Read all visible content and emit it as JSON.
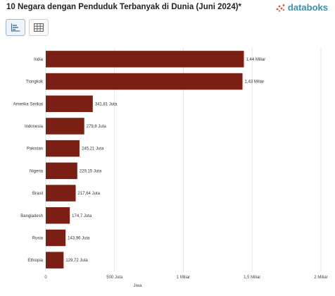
{
  "header": {
    "title": "10 Negara dengan Penduduk Terbanyak di Dunia (Juni 2024)*",
    "brand": "databoks"
  },
  "toolbar": {
    "items": [
      {
        "icon": "bar-chart-icon",
        "active": true
      },
      {
        "icon": "table-icon",
        "active": false
      }
    ]
  },
  "colors": {
    "bar": "#7b1f14",
    "grid": "#e3e3e3",
    "brand": "#3c8fb0",
    "brand_dots": "#e0523a"
  },
  "chart_data": {
    "type": "bar",
    "orientation": "horizontal",
    "title": "10 Negara dengan Penduduk Terbanyak di Dunia (Juni 2024)*",
    "xlabel": "Jiwa",
    "ylabel": "",
    "xlim": [
      0,
      2000000000
    ],
    "grid": true,
    "categories": [
      "India",
      "Tiongkok",
      "Amerika Serikat",
      "Indonesia",
      "Pakistan",
      "Nigeria",
      "Brasil",
      "Bangladesh",
      "Rusia",
      "Ethiopia"
    ],
    "values": [
      1440000000,
      1430000000,
      341810000,
      279800000,
      245210000,
      229150000,
      217640000,
      174700000,
      143960000,
      129720000
    ],
    "value_labels": [
      "1,44 Miliar",
      "1,43 Miliar",
      "341,81 Juta",
      "279,8 Juta",
      "245,21 Juta",
      "229,15 Juta",
      "217,64 Juta",
      "174,7 Juta",
      "143,96 Juta",
      "129,72 Juta"
    ],
    "x_ticks": [
      {
        "value": 0,
        "label": "0"
      },
      {
        "value": 500000000,
        "label": "500 Juta"
      },
      {
        "value": 1000000000,
        "label": "1 Miliar"
      },
      {
        "value": 1500000000,
        "label": "1,5 Miliar"
      },
      {
        "value": 2000000000,
        "label": "2 Miliar"
      }
    ]
  }
}
